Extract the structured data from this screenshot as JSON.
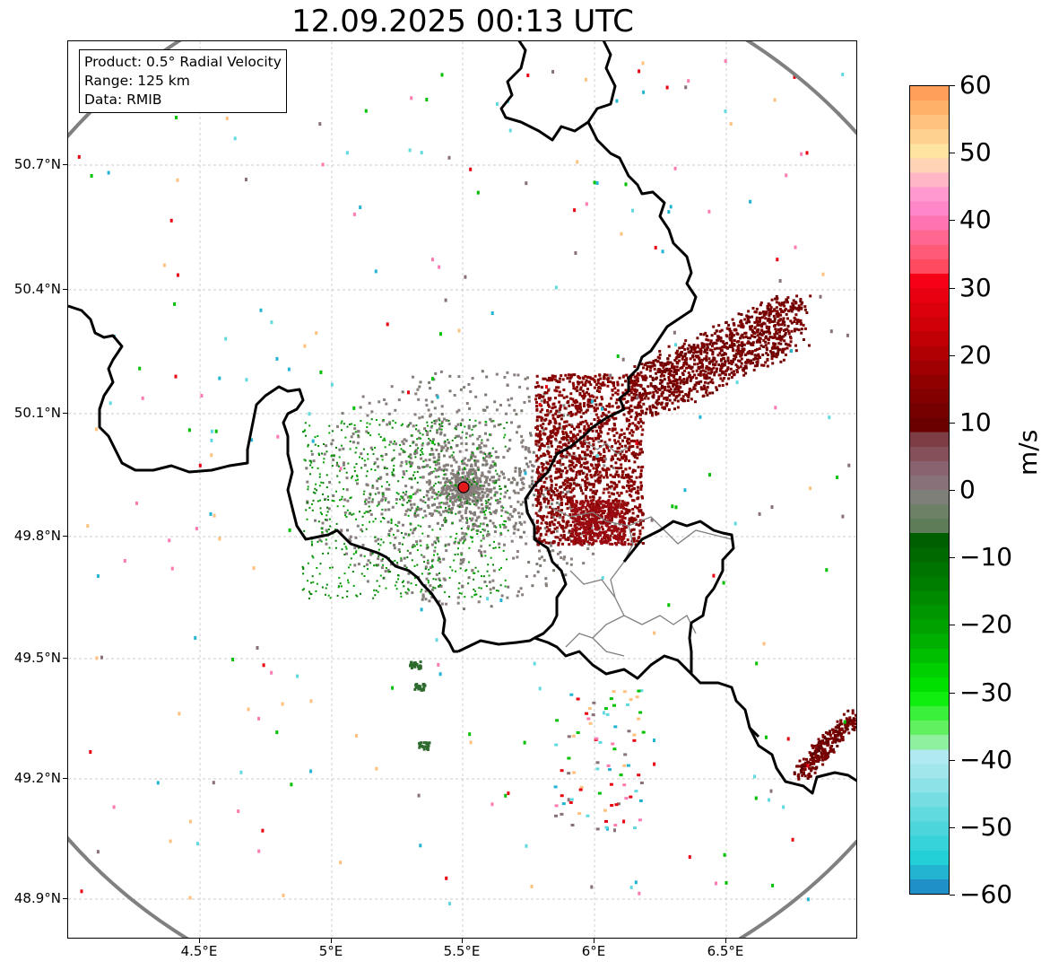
{
  "title": "12.09.2025 00:13 UTC",
  "info_box": {
    "line1": "Product: 0.5° Radial Velocity",
    "line2": "Range: 125 km",
    "line3": "Data: RMIB"
  },
  "map": {
    "lon_range": [
      4.0,
      7.0
    ],
    "lat_range": [
      48.8,
      51.0
    ],
    "grid": true,
    "x_ticks": [
      "4.5°E",
      "5°E",
      "5.5°E",
      "6°E",
      "6.5°E"
    ],
    "y_ticks": [
      "50.7°N",
      "50.4°N",
      "50.1°N",
      "49.8°N",
      "49.5°N",
      "49.2°N",
      "48.9°N"
    ],
    "radar_site": {
      "lon": 5.5,
      "lat": 49.915,
      "marker_color": "#e31a1c"
    },
    "range_ring_color": "#808080"
  },
  "colorbar": {
    "unit": "m/s",
    "ticks": [
      "60",
      "50",
      "40",
      "30",
      "20",
      "10",
      "0",
      "−10",
      "−20",
      "−30",
      "−40",
      "−50",
      "−60"
    ],
    "colors_top_to_bottom": [
      "#ff9f5a",
      "#ffb16a",
      "#ffc27e",
      "#ffd190",
      "#ffe3a0",
      "#ffd3b5",
      "#ffb7c5",
      "#ff99d0",
      "#ff86c8",
      "#ff73b0",
      "#ff6790",
      "#ff5a76",
      "#ff4a60",
      "#f50016",
      "#e80010",
      "#dc000b",
      "#cf0006",
      "#c00004",
      "#b00003",
      "#a00002",
      "#900001",
      "#820000",
      "#750000",
      "#6b0000",
      "#7c3d45",
      "#855059",
      "#8a6370",
      "#887178",
      "#7e7f78",
      "#6d8166",
      "#5f7c58",
      "#006000",
      "#006a00",
      "#007400",
      "#007e00",
      "#008a00",
      "#009600",
      "#00a200",
      "#00b000",
      "#00bf00",
      "#00cf00",
      "#00e000",
      "#10ee10",
      "#3af03a",
      "#60f060",
      "#8ff0a0",
      "#b0eaf0",
      "#a0e6ea",
      "#8ce2e6",
      "#76dee2",
      "#60dadf",
      "#4cd6dc",
      "#36d4da",
      "#24d0d8",
      "#22b4d0",
      "#2090c8"
    ]
  }
}
